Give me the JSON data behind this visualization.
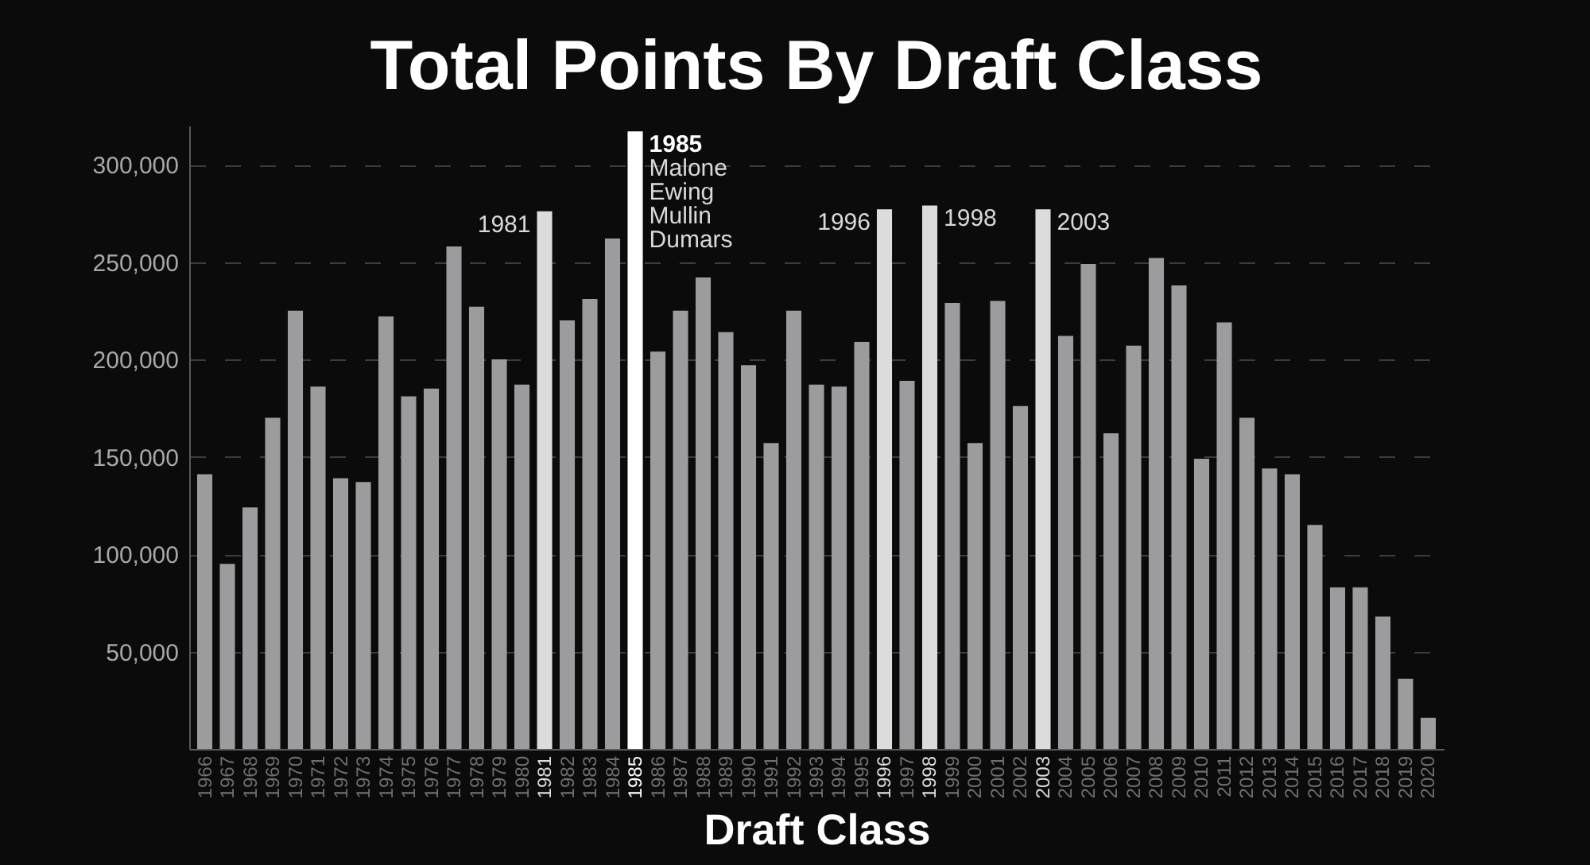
{
  "chart_data": {
    "type": "bar",
    "title": "Total Points By Draft Class",
    "xlabel": "Draft Class",
    "categories": [
      "1966",
      "1967",
      "1968",
      "1969",
      "1970",
      "1971",
      "1972",
      "1973",
      "1974",
      "1975",
      "1976",
      "1977",
      "1978",
      "1979",
      "1980",
      "1981",
      "1982",
      "1983",
      "1984",
      "1985",
      "1986",
      "1987",
      "1988",
      "1989",
      "1990",
      "1991",
      "1992",
      "1993",
      "1994",
      "1995",
      "1996",
      "1997",
      "1998",
      "1999",
      "2000",
      "2001",
      "2002",
      "2003",
      "2004",
      "2005",
      "2006",
      "2007",
      "2008",
      "2009",
      "2010",
      "2011",
      "2012",
      "2013",
      "2014",
      "2015",
      "2016",
      "2017",
      "2018",
      "2019",
      "2020"
    ],
    "values": [
      141000,
      95000,
      124000,
      170000,
      225000,
      186000,
      139000,
      137000,
      222000,
      181000,
      185000,
      258000,
      227000,
      200000,
      187000,
      276000,
      220000,
      231000,
      262000,
      317000,
      204000,
      225000,
      242000,
      214000,
      197000,
      157000,
      225000,
      187000,
      186000,
      209000,
      277000,
      189000,
      279000,
      229000,
      157000,
      230000,
      176000,
      277000,
      212000,
      249000,
      162000,
      207000,
      252000,
      238000,
      149000,
      219000,
      170000,
      144000,
      141000,
      115000,
      83000,
      83000,
      68000,
      36000,
      16000
    ],
    "colors": [
      "#9c9c9f",
      "#9c9c9f",
      "#9c9c9f",
      "#9c9c9f",
      "#9c9c9f",
      "#9c9c9f",
      "#9c9c9f",
      "#9c9c9f",
      "#9c9c9f",
      "#9c9c9f",
      "#9c9c9f",
      "#9c9c9f",
      "#9c9c9f",
      "#9c9c9f",
      "#9c9c9f",
      "#dcdcdc",
      "#9c9c9f",
      "#9c9c9f",
      "#9c9c9f",
      "#ffffff",
      "#9c9c9f",
      "#9c9c9f",
      "#9c9c9f",
      "#9c9c9f",
      "#9c9c9f",
      "#9c9c9f",
      "#9c9c9f",
      "#9c9c9f",
      "#9c9c9f",
      "#9c9c9f",
      "#dcdcdc",
      "#9c9c9f",
      "#dcdcdc",
      "#9c9c9f",
      "#9c9c9f",
      "#9c9c9f",
      "#9c9c9f",
      "#dcdcdc",
      "#9c9c9f",
      "#9c9c9f",
      "#9c9c9f",
      "#9c9c9f",
      "#9c9c9f",
      "#9c9c9f",
      "#9c9c9f",
      "#9c9c9f",
      "#9c9c9f",
      "#9c9c9f",
      "#9c9c9f",
      "#9c9c9f",
      "#9c9c9f",
      "#9c9c9f",
      "#9c9c9f",
      "#9c9c9f",
      "#9c9c9f"
    ],
    "ylim": [
      0,
      320000
    ],
    "yticks": [
      {
        "value": 50000,
        "label": "50,000"
      },
      {
        "value": 100000,
        "label": "100,000"
      },
      {
        "value": 150000,
        "label": "150,000"
      },
      {
        "value": 200000,
        "label": "200,000"
      },
      {
        "value": 250000,
        "label": "250,000"
      },
      {
        "value": 300000,
        "label": "300,000"
      }
    ],
    "grid": "y",
    "annotations": [
      {
        "text": "1981",
        "x": "1981",
        "y": 276000
      },
      {
        "text": "1985\nMalone\nEwing\nMullin\nDumars",
        "x": "1985",
        "y": 317000
      },
      {
        "text": "1996",
        "x": "1996",
        "y": 277000
      },
      {
        "text": "1998",
        "x": "1998",
        "y": 279000
      },
      {
        "text": "2003",
        "x": "2003",
        "y": 277000
      }
    ]
  }
}
